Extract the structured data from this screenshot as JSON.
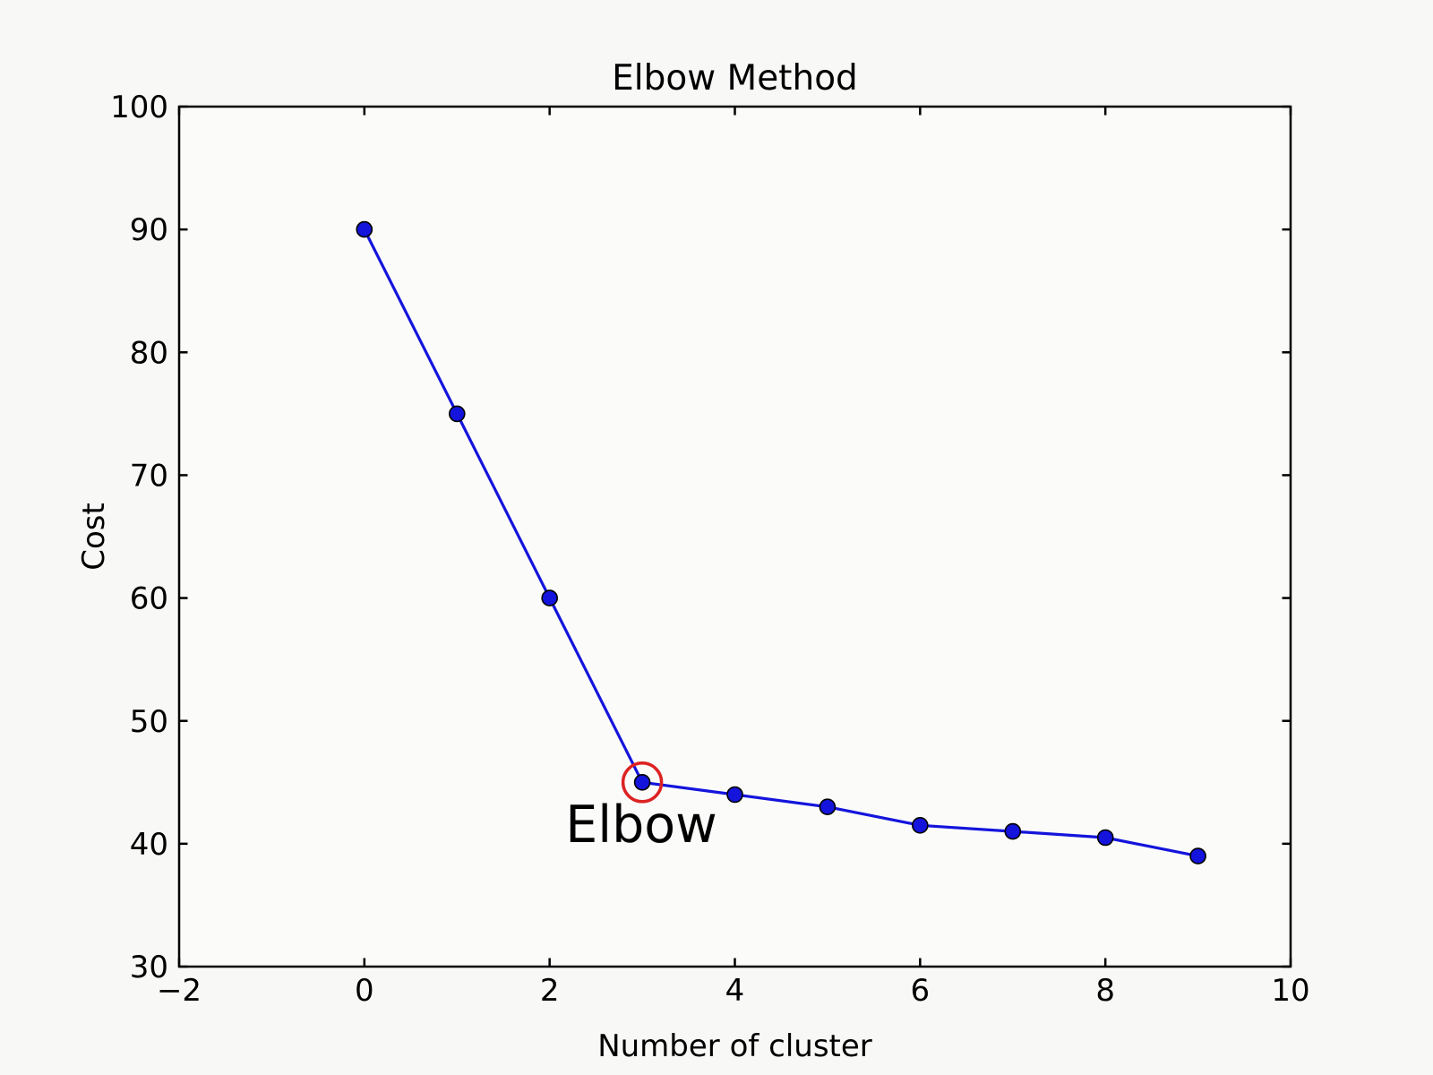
{
  "figure": {
    "background_color": "#f8f8f7",
    "plot_background_color": "#fbfbfa"
  },
  "chart_data": {
    "type": "line",
    "title": "Elbow Method",
    "xlabel": "Number of cluster",
    "ylabel": "Cost",
    "x": [
      0,
      1,
      2,
      3,
      4,
      5,
      6,
      7,
      8,
      9
    ],
    "y": [
      90,
      75,
      60,
      45,
      44,
      43,
      41.5,
      41,
      40.5,
      39
    ],
    "xlim": [
      -2,
      10
    ],
    "ylim": [
      30,
      100
    ],
    "xticks": [
      -2,
      0,
      2,
      4,
      6,
      8,
      10
    ],
    "xtick_labels": [
      "−2",
      "0",
      "2",
      "4",
      "6",
      "8",
      "10"
    ],
    "yticks": [
      30,
      40,
      50,
      60,
      70,
      80,
      90,
      100
    ],
    "ytick_labels": [
      "30",
      "40",
      "50",
      "60",
      "70",
      "80",
      "90",
      "100"
    ],
    "grid": false,
    "legend_position": "none",
    "line_color": "#1414dc",
    "marker_color": "#1414dc",
    "marker_edge_color": "#000000",
    "axis_color": "#000000",
    "annotation": {
      "text": "Elbow",
      "x": 3,
      "y": 45,
      "circle_color": "#dd2222"
    }
  }
}
